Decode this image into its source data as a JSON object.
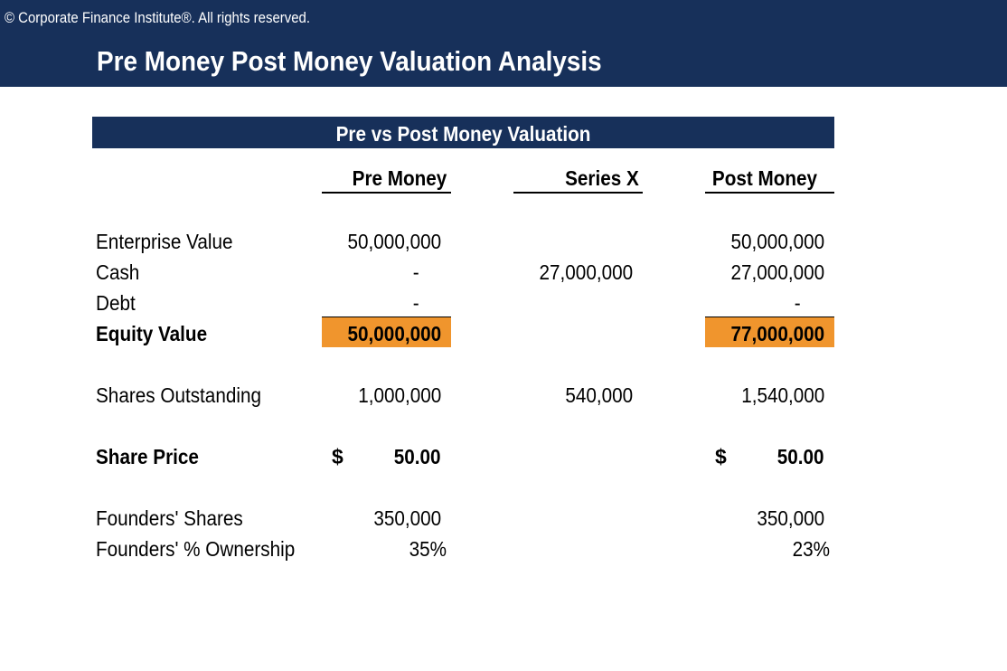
{
  "header": {
    "copyright": "© Corporate Finance Institute®. All rights reserved.",
    "title": "Pre Money Post Money Valuation Analysis"
  },
  "section": {
    "title": "Pre vs Post Money Valuation"
  },
  "columns": {
    "pre": "Pre Money",
    "series": "Series X",
    "post": "Post Money"
  },
  "rows": {
    "enterprise_value": {
      "label": "Enterprise Value",
      "pre": "50,000,000",
      "series": "",
      "post": "50,000,000"
    },
    "cash": {
      "label": "Cash",
      "pre": "-",
      "series": "27,000,000",
      "post": "27,000,000"
    },
    "debt": {
      "label": "Debt",
      "pre": "-",
      "series": "",
      "post": "-"
    },
    "equity_value": {
      "label": "Equity Value",
      "pre": "50,000,000",
      "series": "",
      "post": "77,000,000"
    },
    "shares_outstanding": {
      "label": "Shares Outstanding",
      "pre": "1,000,000",
      "series": "540,000",
      "post": "1,540,000"
    },
    "share_price": {
      "label": "Share Price",
      "currency": "$",
      "pre": "50.00",
      "series": "",
      "post": "50.00"
    },
    "founders_shares": {
      "label": "Founders' Shares",
      "pre": "350,000",
      "series": "",
      "post": "350,000"
    },
    "founders_ownership": {
      "label": "Founders' % Ownership",
      "pre": "35%",
      "series": "",
      "post": "23%"
    }
  },
  "colors": {
    "navy": "#17305a",
    "highlight": "#f0952d"
  }
}
